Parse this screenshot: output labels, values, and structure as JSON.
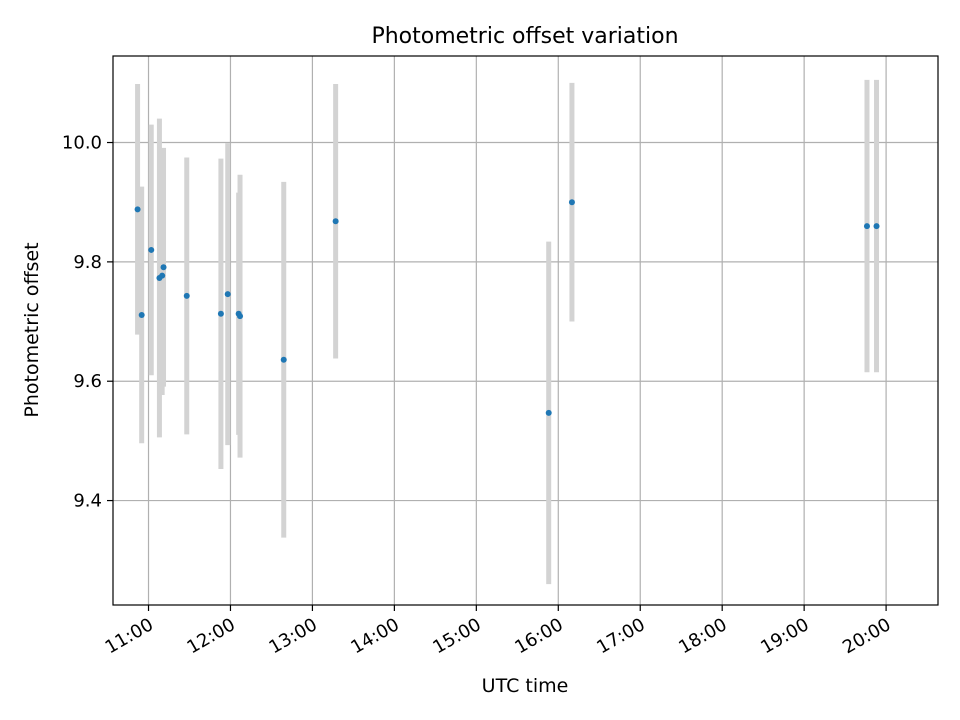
{
  "chart_data": {
    "type": "scatter",
    "title": "Photometric offset variation",
    "xlabel": "UTC time",
    "ylabel": "Photometric offset",
    "x_ticks": [
      "11:00",
      "12:00",
      "13:00",
      "14:00",
      "15:00",
      "16:00",
      "17:00",
      "18:00",
      "19:00",
      "20:00"
    ],
    "y_ticks": [
      "9.4",
      "9.6",
      "9.8",
      "10.0"
    ],
    "y_tick_values": [
      9.4,
      9.6,
      9.8,
      10.0
    ],
    "xlim": [
      "10:34",
      "20:38"
    ],
    "ylim": [
      9.225,
      10.145
    ],
    "grid": true,
    "point_color": "#1f77b4",
    "errorbar_color": "#d3d3d3",
    "points": [
      {
        "x": "10:52",
        "y": 9.888,
        "err": 0.21
      },
      {
        "x": "10:55",
        "y": 9.711,
        "err": 0.215
      },
      {
        "x": "11:02",
        "y": 9.82,
        "err": 0.21
      },
      {
        "x": "11:08",
        "y": 9.773,
        "err": 0.267
      },
      {
        "x": "11:10",
        "y": 9.777,
        "err": 0.2
      },
      {
        "x": "11:11",
        "y": 9.791,
        "err": 0.2
      },
      {
        "x": "11:28",
        "y": 9.743,
        "err": 0.232
      },
      {
        "x": "11:53",
        "y": 9.713,
        "err": 0.26
      },
      {
        "x": "11:58",
        "y": 9.746,
        "err": 0.253
      },
      {
        "x": "12:06",
        "y": 9.713,
        "err": 0.203
      },
      {
        "x": "12:07",
        "y": 9.709,
        "err": 0.237
      },
      {
        "x": "12:39",
        "y": 9.636,
        "err": 0.298
      },
      {
        "x": "13:17",
        "y": 9.868,
        "err": 0.23
      },
      {
        "x": "15:53",
        "y": 9.547,
        "err": 0.287
      },
      {
        "x": "16:10",
        "y": 9.9,
        "err": 0.2
      },
      {
        "x": "19:46",
        "y": 9.86,
        "err": 0.245
      },
      {
        "x": "19:53",
        "y": 9.86,
        "err": 0.245
      }
    ]
  }
}
